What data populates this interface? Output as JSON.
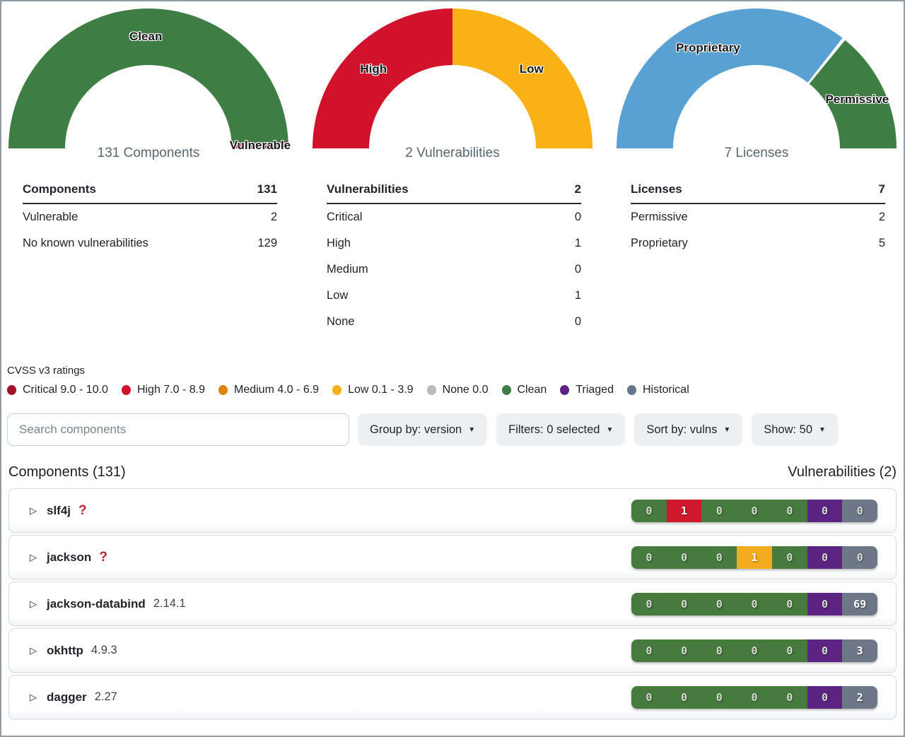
{
  "gauges": [
    {
      "name": "components",
      "center_label": "131 Components",
      "gap": false,
      "slices": [
        {
          "label": "Clean",
          "value": 129,
          "color": "#3e7e45"
        },
        {
          "label": "Vulnerable",
          "value": 2,
          "color": "#d1122a"
        }
      ]
    },
    {
      "name": "vulnerabilities",
      "center_label": "2 Vulnerabilities",
      "gap": false,
      "slices": [
        {
          "label": "High",
          "value": 1,
          "color": "#d1122a"
        },
        {
          "label": "Low",
          "value": 1,
          "color": "#f9b115"
        }
      ]
    },
    {
      "name": "licenses",
      "center_label": "7 Licenses",
      "gap": true,
      "slices": [
        {
          "label": "Proprietary",
          "value": 5,
          "color": "#58a1d2"
        },
        {
          "label": "Permissive",
          "value": 2,
          "color": "#3e7e45"
        }
      ]
    }
  ],
  "stat_tables": [
    {
      "name": "components",
      "header": {
        "label": "Components",
        "value": "131"
      },
      "rows": [
        {
          "label": "Vulnerable",
          "value": "2"
        },
        {
          "label": "No known vulnerabilities",
          "value": "129"
        }
      ]
    },
    {
      "name": "vulnerabilities",
      "header": {
        "label": "Vulnerabilities",
        "value": "2"
      },
      "rows": [
        {
          "label": "Critical",
          "value": "0"
        },
        {
          "label": "High",
          "value": "1"
        },
        {
          "label": "Medium",
          "value": "0"
        },
        {
          "label": "Low",
          "value": "1"
        },
        {
          "label": "None",
          "value": "0"
        }
      ]
    },
    {
      "name": "licenses",
      "header": {
        "label": "Licenses",
        "value": "7"
      },
      "rows": [
        {
          "label": "Permissive",
          "value": "2"
        },
        {
          "label": "Proprietary",
          "value": "5"
        }
      ]
    }
  ],
  "legend": {
    "title": "CVSS v3 ratings",
    "items": [
      {
        "label": "Critical 9.0 - 10.0",
        "color": "#a31326"
      },
      {
        "label": "High 7.0 - 8.9",
        "color": "#d1122a"
      },
      {
        "label": "Medium 4.0 - 6.9",
        "color": "#de8500"
      },
      {
        "label": "Low 0.1 - 3.9",
        "color": "#f9b115"
      },
      {
        "label": "None 0.0",
        "color": "#b4bcc2"
      },
      {
        "label": "Clean",
        "color": "#3e7e45"
      },
      {
        "label": "Triaged",
        "color": "#5c2482"
      },
      {
        "label": "Historical",
        "color": "#64748b"
      }
    ]
  },
  "toolbar": {
    "search_placeholder": "Search components",
    "buttons": [
      {
        "name": "group-by",
        "label": "Group by: version",
        "caret": "▼"
      },
      {
        "name": "filters",
        "label": "Filters: 0 selected",
        "caret": "▼"
      },
      {
        "name": "sort-by",
        "label": "Sort by: vulns",
        "caret": "▼"
      },
      {
        "name": "show",
        "label": "Show: 50",
        "caret": "▼"
      }
    ]
  },
  "list": {
    "left_heading": "Components (131)",
    "right_heading": "Vulnerabilities (2)",
    "caret_glyph": "▷",
    "unknown_version_glyph": "?",
    "severity_colors": {
      "clean": "#477a3f",
      "high": "#d0182c",
      "low": "#f2ac1d",
      "triaged": "#5c2482",
      "historical": "#6e7787"
    },
    "rows": [
      {
        "name": "slf4j",
        "version": "",
        "unknown_version": true,
        "segments": [
          {
            "value": "0",
            "color": "clean"
          },
          {
            "value": "1",
            "color": "high"
          },
          {
            "value": "0",
            "color": "clean"
          },
          {
            "value": "0",
            "color": "clean"
          },
          {
            "value": "0",
            "color": "clean"
          },
          {
            "value": "0",
            "color": "triaged"
          },
          {
            "value": "0",
            "color": "historical"
          }
        ]
      },
      {
        "name": "jackson",
        "version": "",
        "unknown_version": true,
        "segments": [
          {
            "value": "0",
            "color": "clean"
          },
          {
            "value": "0",
            "color": "clean"
          },
          {
            "value": "0",
            "color": "clean"
          },
          {
            "value": "1",
            "color": "low"
          },
          {
            "value": "0",
            "color": "clean"
          },
          {
            "value": "0",
            "color": "triaged"
          },
          {
            "value": "0",
            "color": "historical"
          }
        ]
      },
      {
        "name": "jackson-databind",
        "version": "2.14.1",
        "unknown_version": false,
        "segments": [
          {
            "value": "0",
            "color": "clean"
          },
          {
            "value": "0",
            "color": "clean"
          },
          {
            "value": "0",
            "color": "clean"
          },
          {
            "value": "0",
            "color": "clean"
          },
          {
            "value": "0",
            "color": "clean"
          },
          {
            "value": "0",
            "color": "triaged"
          },
          {
            "value": "69",
            "color": "historical"
          }
        ]
      },
      {
        "name": "okhttp",
        "version": "4.9.3",
        "unknown_version": false,
        "segments": [
          {
            "value": "0",
            "color": "clean"
          },
          {
            "value": "0",
            "color": "clean"
          },
          {
            "value": "0",
            "color": "clean"
          },
          {
            "value": "0",
            "color": "clean"
          },
          {
            "value": "0",
            "color": "clean"
          },
          {
            "value": "0",
            "color": "triaged"
          },
          {
            "value": "3",
            "color": "historical"
          }
        ]
      },
      {
        "name": "dagger",
        "version": "2.27",
        "unknown_version": false,
        "segments": [
          {
            "value": "0",
            "color": "clean"
          },
          {
            "value": "0",
            "color": "clean"
          },
          {
            "value": "0",
            "color": "clean"
          },
          {
            "value": "0",
            "color": "clean"
          },
          {
            "value": "0",
            "color": "clean"
          },
          {
            "value": "0",
            "color": "triaged"
          },
          {
            "value": "2",
            "color": "historical"
          }
        ]
      }
    ]
  }
}
